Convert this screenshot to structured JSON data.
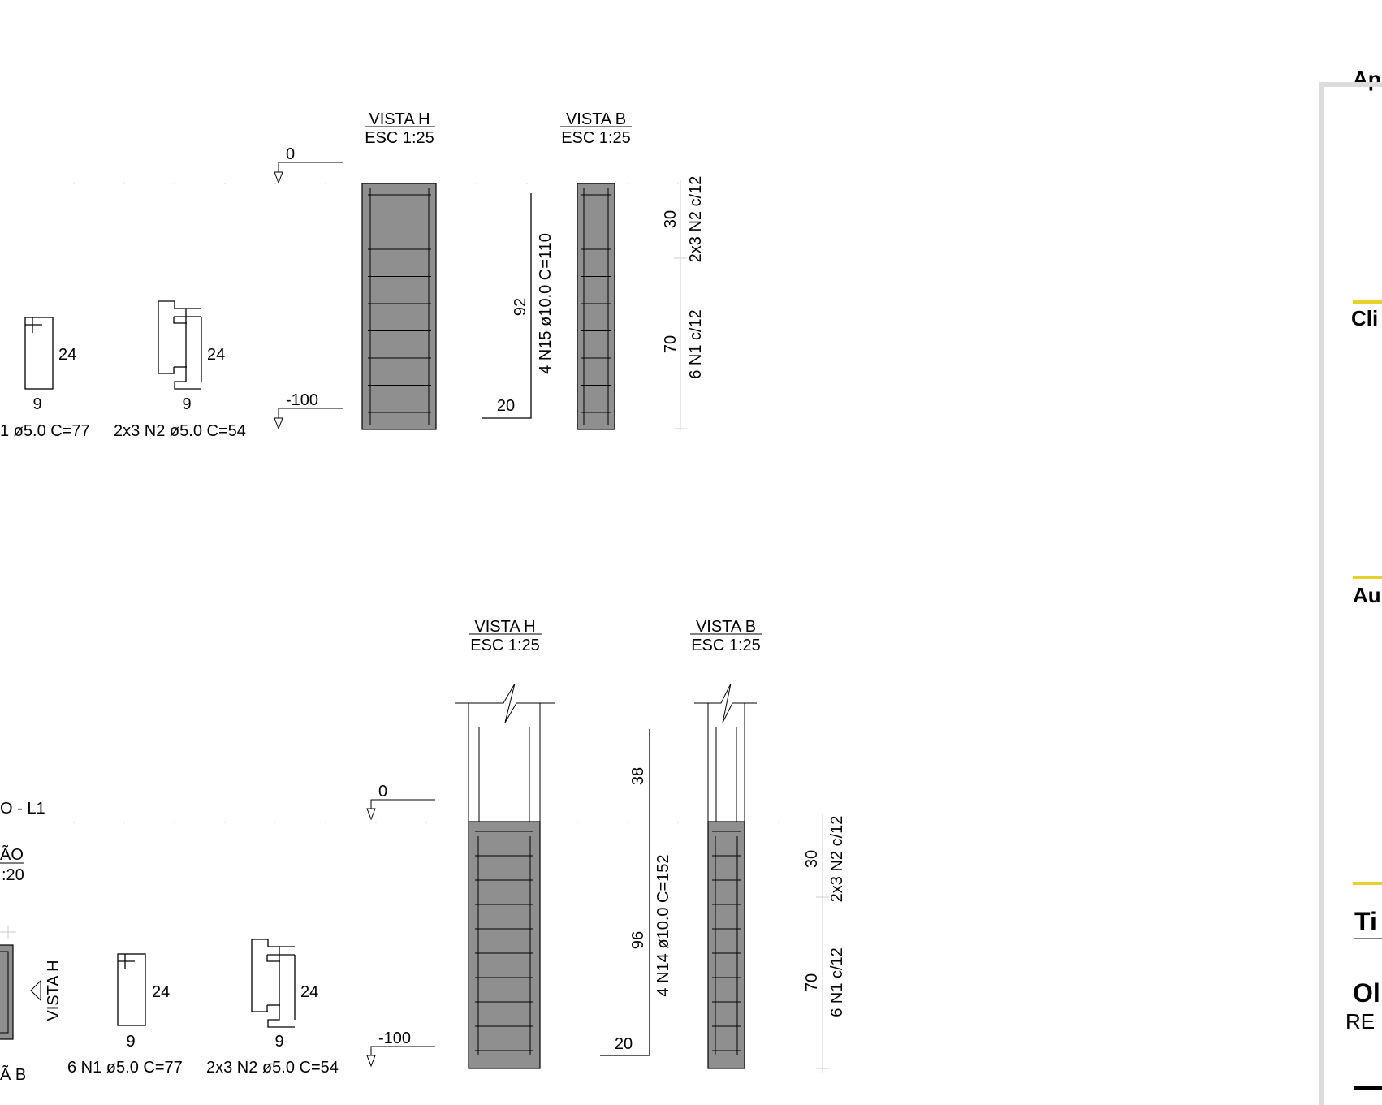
{
  "sheet": {
    "panel_labels": {
      "top": "Ap",
      "client": "Cli",
      "author": "Au",
      "title": "Ti",
      "work": "Ol",
      "work_sub": "RE"
    },
    "accent_color": "#e6d22a",
    "border_color": "#dcdcdc"
  },
  "upper": {
    "view_h": {
      "name": "VISTA H",
      "scale": "ESC 1:25"
    },
    "view_b": {
      "name": "VISTA B",
      "scale": "ESC 1:25"
    },
    "level_top": "0",
    "level_bottom": "-100",
    "stirrup1": {
      "dim_h": "24",
      "dim_w": "9",
      "label": "1 ø5.0 C=77"
    },
    "stirrup2": {
      "dim_h": "24",
      "dim_w": "9",
      "label": "2x3 N2 ø5.0 C=54"
    },
    "long_bar": {
      "len_v": "92",
      "len_h": "20",
      "label": "4 N15 ø10.0 C=110"
    },
    "spacing": {
      "upper_len": "30",
      "upper_label": "2x3 N2 c/12",
      "lower_len": "70",
      "lower_label": "6 N1 c/12"
    }
  },
  "lower": {
    "view_h": {
      "name": "VISTA H",
      "scale": "ESC 1:25"
    },
    "view_b": {
      "name": "VISTA B",
      "scale": "ESC 1:25"
    },
    "element_name": "O - L1",
    "section_name": "ÃO",
    "section_scale": ":20",
    "section_arrow": "VISTA H",
    "section_b": "Ã B",
    "level_top": "0",
    "level_bottom": "-100",
    "stirrup1": {
      "dim_h": "24",
      "dim_w": "9",
      "label": "6 N1 ø5.0 C=77"
    },
    "stirrup2": {
      "dim_h": "24",
      "dim_w": "9",
      "label": "2x3 N2 ø5.0 C=54"
    },
    "long_bar": {
      "len_top": "38",
      "len_mid": "96",
      "len_h": "20",
      "label": "4 N14 ø10.0 C=152"
    },
    "spacing": {
      "upper_len": "30",
      "upper_label": "2x3 N2 c/12",
      "lower_len": "70",
      "lower_label": "6 N1 c/12"
    }
  }
}
